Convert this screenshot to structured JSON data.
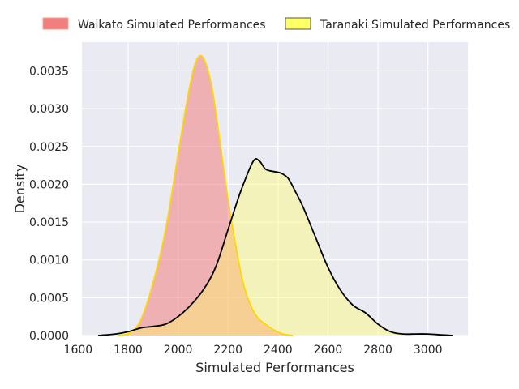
{
  "chart_data": {
    "type": "area",
    "xlabel": "Simulated Performances",
    "ylabel": "Density",
    "xlim": [
      1615,
      3160
    ],
    "ylim": [
      0,
      0.00388
    ],
    "xticks": [
      1600,
      1800,
      2000,
      2200,
      2400,
      2600,
      2800,
      3000
    ],
    "xtick_labels": [
      "1600",
      "1800",
      "2000",
      "2200",
      "2400",
      "2600",
      "2800",
      "3000"
    ],
    "yticks": [
      0,
      0.0005,
      0.001,
      0.0015,
      0.002,
      0.0025,
      0.003,
      0.0035
    ],
    "ytick_labels": [
      "0.0000",
      "0.0005",
      "0.0010",
      "0.0015",
      "0.0020",
      "0.0025",
      "0.0030",
      "0.0035"
    ],
    "grid": true,
    "legend_position": "top",
    "series": [
      {
        "name": "Waikato Simulated Performances",
        "fill_color": "#f08080",
        "line_color": "#ffd700",
        "fill_opacity": 0.55,
        "x": [
          1760,
          1800,
          1850,
          1900,
          1950,
          2000,
          2030,
          2060,
          2080,
          2100,
          2120,
          2140,
          2170,
          2200,
          2230,
          2260,
          2290,
          2320,
          2350,
          2380,
          2420,
          2460
        ],
        "y": [
          0.0,
          2e-05,
          0.0002,
          0.0007,
          0.0014,
          0.0024,
          0.003,
          0.0035,
          0.00368,
          0.00368,
          0.0035,
          0.0032,
          0.0025,
          0.0018,
          0.0012,
          0.0007,
          0.0004,
          0.00023,
          0.00015,
          8e-05,
          2e-05,
          0.0
        ]
      },
      {
        "name": "Taranaki Simulated Performances",
        "fill_color": "#ffff66",
        "line_color": "#000000",
        "fill_opacity": 0.4,
        "x": [
          1680,
          1750,
          1800,
          1850,
          1900,
          1950,
          2000,
          2050,
          2100,
          2150,
          2200,
          2250,
          2300,
          2325,
          2350,
          2380,
          2410,
          2440,
          2470,
          2500,
          2550,
          2600,
          2650,
          2700,
          2750,
          2800,
          2850,
          2900,
          2950,
          3000,
          3050,
          3100
        ],
        "y": [
          0.0,
          2e-05,
          5e-05,
          0.0001,
          0.00012,
          0.00015,
          0.00025,
          0.0004,
          0.0006,
          0.0009,
          0.0014,
          0.0019,
          0.0023,
          0.00231,
          0.0022,
          0.00217,
          0.00215,
          0.00208,
          0.0019,
          0.0017,
          0.0013,
          0.0009,
          0.0006,
          0.0004,
          0.0003,
          0.00015,
          5e-05,
          2e-05,
          2e-05,
          2e-05,
          1e-05,
          0.0
        ]
      }
    ]
  }
}
